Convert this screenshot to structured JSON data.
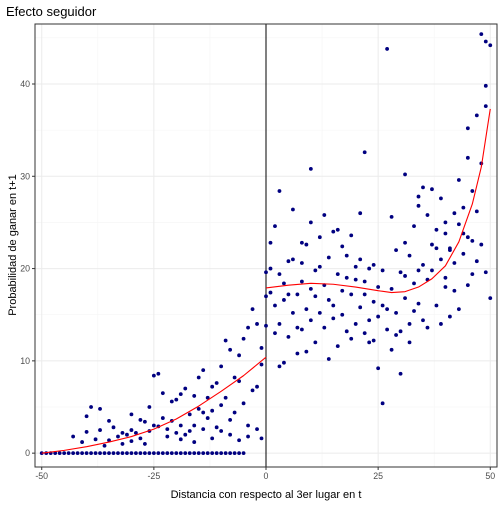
{
  "chart_data": {
    "type": "scatter",
    "title": "Efecto seguidor",
    "xlabel": "Distancia con respecto al 3er lugar en t",
    "ylabel": "Probabilidad de ganar en t+1",
    "xlim": [
      -51.5,
      51.5
    ],
    "ylim": [
      -1.5,
      46.5
    ],
    "x_ticks": [
      -50,
      -25,
      0,
      25,
      50
    ],
    "x_tick_labels": [
      "-50",
      "-25",
      "0",
      "25",
      "50"
    ],
    "y_ticks": [
      0,
      10,
      20,
      30,
      40
    ],
    "y_tick_labels": [
      "0",
      "10",
      "20",
      "30",
      "40"
    ],
    "grid": true,
    "vertical_line_x": 0,
    "colors": {
      "points": "#000080",
      "fit": "#ff0000",
      "vline": "#000000",
      "grid_major": "#ebebeb",
      "grid_minor": "#f5f5f5",
      "panel_border": "#333333"
    },
    "points": [
      [
        -50,
        0
      ],
      [
        -49,
        0
      ],
      [
        -48,
        0
      ],
      [
        -47,
        0
      ],
      [
        -46,
        0
      ],
      [
        -45,
        0
      ],
      [
        -44,
        0
      ],
      [
        -43,
        0
      ],
      [
        -42,
        0
      ],
      [
        -41,
        0
      ],
      [
        -40,
        0
      ],
      [
        -39,
        0
      ],
      [
        -38,
        0
      ],
      [
        -37,
        0
      ],
      [
        -36,
        0
      ],
      [
        -35,
        0
      ],
      [
        -34,
        0
      ],
      [
        -33,
        0
      ],
      [
        -32,
        0
      ],
      [
        -31,
        0
      ],
      [
        -30,
        0
      ],
      [
        -29,
        0
      ],
      [
        -28,
        0
      ],
      [
        -27,
        0
      ],
      [
        -26,
        0
      ],
      [
        -25,
        0
      ],
      [
        -24,
        0
      ],
      [
        -23,
        0
      ],
      [
        -22,
        0
      ],
      [
        -21,
        0
      ],
      [
        -20,
        0
      ],
      [
        -19,
        0
      ],
      [
        -18,
        0
      ],
      [
        -17,
        0
      ],
      [
        -16,
        0
      ],
      [
        -15,
        0
      ],
      [
        -14,
        0
      ],
      [
        -13,
        0
      ],
      [
        -12,
        0
      ],
      [
        -11,
        0
      ],
      [
        -10,
        0
      ],
      [
        -9,
        0
      ],
      [
        -8,
        0
      ],
      [
        -7,
        0
      ],
      [
        -6,
        0
      ],
      [
        -5,
        0
      ],
      [
        -43,
        1.8
      ],
      [
        -41,
        1.2
      ],
      [
        -40,
        2.3
      ],
      [
        -39,
        5.0
      ],
      [
        -38,
        1.5
      ],
      [
        -37,
        4.8
      ],
      [
        -36,
        0.8
      ],
      [
        -35,
        1.4
      ],
      [
        -34,
        2.8
      ],
      [
        -33,
        1.8
      ],
      [
        -32,
        1.0
      ],
      [
        -31,
        2.0
      ],
      [
        -30,
        2.5
      ],
      [
        -29,
        2.2
      ],
      [
        -28,
        1.6
      ],
      [
        -27,
        3.4
      ],
      [
        -26,
        2.4
      ],
      [
        -25,
        8.4
      ],
      [
        -24,
        8.6
      ],
      [
        -23,
        3.8
      ],
      [
        -22,
        2.6
      ],
      [
        -21,
        5.6
      ],
      [
        -20,
        2.2
      ],
      [
        -19,
        6.4
      ],
      [
        -18,
        2.0
      ],
      [
        -17,
        4.2
      ],
      [
        -16,
        3.0
      ],
      [
        -15,
        8.2
      ],
      [
        -14,
        2.6
      ],
      [
        -13,
        6.0
      ],
      [
        -12,
        4.6
      ],
      [
        -11,
        7.6
      ],
      [
        -10,
        5.2
      ],
      [
        -9,
        12.2
      ],
      [
        -8,
        3.6
      ],
      [
        -7,
        8.2
      ],
      [
        -6,
        10.6
      ],
      [
        -5,
        5.4
      ],
      [
        -4,
        13.6
      ],
      [
        -3,
        6.8
      ],
      [
        -2,
        14.0
      ],
      [
        -1,
        9.6
      ],
      [
        -40,
        4.0
      ],
      [
        -37,
        2.5
      ],
      [
        -35,
        3.5
      ],
      [
        -32,
        2.2
      ],
      [
        -30,
        4.2
      ],
      [
        -28,
        3.6
      ],
      [
        -26,
        5.0
      ],
      [
        -24,
        2.9
      ],
      [
        -23,
        6.5
      ],
      [
        -21,
        3.5
      ],
      [
        -20,
        5.8
      ],
      [
        -19,
        3.0
      ],
      [
        -18,
        7.0
      ],
      [
        -17,
        2.4
      ],
      [
        -16,
        6.2
      ],
      [
        -15,
        4.8
      ],
      [
        -14,
        9.0
      ],
      [
        -13,
        3.8
      ],
      [
        -12,
        7.2
      ],
      [
        -11,
        2.8
      ],
      [
        -10,
        9.4
      ],
      [
        -9,
        6.0
      ],
      [
        -8,
        11.2
      ],
      [
        -7,
        4.4
      ],
      [
        -6,
        7.8
      ],
      [
        -5,
        12.4
      ],
      [
        -4,
        3.0
      ],
      [
        -3,
        15.6
      ],
      [
        -2,
        7.2
      ],
      [
        -1,
        11.4
      ],
      [
        -30,
        1.3
      ],
      [
        -27,
        1.0
      ],
      [
        -25,
        3.0
      ],
      [
        -22,
        1.8
      ],
      [
        -19,
        1.5
      ],
      [
        -16,
        1.2
      ],
      [
        -14,
        4.4
      ],
      [
        -12,
        1.6
      ],
      [
        -10,
        2.4
      ],
      [
        -8,
        2.0
      ],
      [
        -6,
        1.4
      ],
      [
        -4,
        1.8
      ],
      [
        -2,
        2.6
      ],
      [
        -1,
        1.6
      ],
      [
        0,
        19.6
      ],
      [
        0,
        17.0
      ],
      [
        0,
        13.8
      ],
      [
        1,
        17.4
      ],
      [
        1,
        22.8
      ],
      [
        2,
        16.0
      ],
      [
        2,
        13.0
      ],
      [
        3,
        19.4
      ],
      [
        3,
        9.4
      ],
      [
        4,
        16.6
      ],
      [
        4,
        18.4
      ],
      [
        5,
        12.6
      ],
      [
        5,
        20.8
      ],
      [
        6,
        15.2
      ],
      [
        6,
        21.0
      ],
      [
        7,
        10.8
      ],
      [
        7,
        17.2
      ],
      [
        8,
        18.6
      ],
      [
        8,
        13.4
      ],
      [
        9,
        15.6
      ],
      [
        9,
        22.6
      ],
      [
        10,
        14.4
      ],
      [
        10,
        17.8
      ],
      [
        11,
        12.0
      ],
      [
        11,
        19.8
      ],
      [
        12,
        15.2
      ],
      [
        12,
        23.4
      ],
      [
        13,
        18.2
      ],
      [
        13,
        13.6
      ],
      [
        14,
        21.2
      ],
      [
        14,
        16.6
      ],
      [
        15,
        24.0
      ],
      [
        15,
        14.6
      ],
      [
        16,
        19.4
      ],
      [
        16,
        11.6
      ],
      [
        17,
        17.6
      ],
      [
        17,
        22.4
      ],
      [
        18,
        13.2
      ],
      [
        18,
        19.0
      ],
      [
        19,
        17.2
      ],
      [
        19,
        23.6
      ],
      [
        20,
        14.0
      ],
      [
        20,
        18.8
      ],
      [
        21,
        21.0
      ],
      [
        21,
        15.8
      ],
      [
        22,
        13.0
      ],
      [
        22,
        17.2
      ],
      [
        23,
        20.0
      ],
      [
        23,
        14.4
      ],
      [
        24,
        16.4
      ],
      [
        24,
        12.2
      ],
      [
        25,
        18.0
      ],
      [
        25,
        9.2
      ],
      [
        26,
        5.4
      ],
      [
        26,
        16.0
      ],
      [
        27,
        13.4
      ],
      [
        27,
        43.8
      ],
      [
        28,
        17.8
      ],
      [
        28,
        11.2
      ],
      [
        29,
        22.0
      ],
      [
        29,
        15.2
      ],
      [
        30,
        19.6
      ],
      [
        30,
        13.2
      ],
      [
        31,
        16.8
      ],
      [
        31,
        22.8
      ],
      [
        32,
        14.0
      ],
      [
        32,
        21.4
      ],
      [
        33,
        18.4
      ],
      [
        33,
        24.6
      ],
      [
        34,
        16.2
      ],
      [
        34,
        27.8
      ],
      [
        35,
        20.4
      ],
      [
        35,
        14.4
      ],
      [
        36,
        25.8
      ],
      [
        36,
        18.8
      ],
      [
        37,
        22.6
      ],
      [
        37,
        28.6
      ],
      [
        38,
        16.0
      ],
      [
        38,
        24.2
      ],
      [
        39,
        21.0
      ],
      [
        39,
        27.6
      ],
      [
        40,
        19.0
      ],
      [
        40,
        25.0
      ],
      [
        41,
        22.0
      ],
      [
        41,
        14.8
      ],
      [
        42,
        26.0
      ],
      [
        42,
        17.6
      ],
      [
        43,
        24.8
      ],
      [
        43,
        29.6
      ],
      [
        44,
        21.6
      ],
      [
        44,
        26.6
      ],
      [
        45,
        23.4
      ],
      [
        45,
        32.0
      ],
      [
        46,
        28.4
      ],
      [
        46,
        19.4
      ],
      [
        47,
        36.6
      ],
      [
        47,
        26.2
      ],
      [
        48,
        31.4
      ],
      [
        48,
        45.4
      ],
      [
        49,
        44.6
      ],
      [
        49,
        39.8
      ],
      [
        50,
        16.8
      ],
      [
        50,
        44.2
      ],
      [
        1,
        20.0
      ],
      [
        2,
        24.6
      ],
      [
        3,
        14.0
      ],
      [
        4,
        9.8
      ],
      [
        5,
        17.2
      ],
      [
        6,
        26.4
      ],
      [
        7,
        13.6
      ],
      [
        8,
        20.6
      ],
      [
        9,
        11.0
      ],
      [
        10,
        25.0
      ],
      [
        11,
        17.0
      ],
      [
        12,
        20.2
      ],
      [
        13,
        25.8
      ],
      [
        14,
        10.2
      ],
      [
        15,
        16.0
      ],
      [
        16,
        24.2
      ],
      [
        17,
        15.0
      ],
      [
        18,
        21.4
      ],
      [
        19,
        12.4
      ],
      [
        20,
        20.2
      ],
      [
        21,
        26.0
      ],
      [
        22,
        18.6
      ],
      [
        23,
        12.0
      ],
      [
        24,
        20.4
      ],
      [
        25,
        14.8
      ],
      [
        26,
        19.8
      ],
      [
        27,
        15.6
      ],
      [
        28,
        25.6
      ],
      [
        29,
        12.8
      ],
      [
        30,
        8.6
      ],
      [
        31,
        19.2
      ],
      [
        32,
        12.0
      ],
      [
        33,
        15.4
      ],
      [
        34,
        19.8
      ],
      [
        35,
        28.8
      ],
      [
        36,
        13.6
      ],
      [
        37,
        19.8
      ],
      [
        38,
        22.2
      ],
      [
        39,
        14.0
      ],
      [
        40,
        18.0
      ],
      [
        41,
        22.2
      ],
      [
        42,
        20.6
      ],
      [
        43,
        15.6
      ],
      [
        44,
        23.8
      ],
      [
        45,
        18.2
      ],
      [
        46,
        23.0
      ],
      [
        47,
        20.8
      ],
      [
        48,
        22.6
      ],
      [
        49,
        19.6
      ],
      [
        49,
        37.6
      ],
      [
        10,
        30.8
      ],
      [
        22,
        32.6
      ],
      [
        31,
        30.2
      ],
      [
        34,
        26.8
      ],
      [
        40,
        23.8
      ],
      [
        45,
        35.2
      ],
      [
        3,
        28.4
      ],
      [
        8,
        22.8
      ]
    ],
    "fit_curve": [
      [
        -50,
        0.0
      ],
      [
        -45,
        0.3
      ],
      [
        -40,
        0.7
      ],
      [
        -35,
        1.2
      ],
      [
        -30,
        1.8
      ],
      [
        -25,
        2.6
      ],
      [
        -20,
        3.7
      ],
      [
        -15,
        5.1
      ],
      [
        -10,
        6.7
      ],
      [
        -5,
        8.4
      ],
      [
        0,
        10.4
      ],
      null,
      [
        0,
        17.9
      ],
      [
        5,
        18.2
      ],
      [
        10,
        18.4
      ],
      [
        15,
        18.3
      ],
      [
        20,
        18.0
      ],
      [
        25,
        17.6
      ],
      [
        28,
        17.4
      ],
      [
        31,
        17.5
      ],
      [
        34,
        18.0
      ],
      [
        37,
        18.9
      ],
      [
        40,
        20.3
      ],
      [
        43,
        22.9
      ],
      [
        46,
        27.0
      ],
      [
        48,
        31.0
      ],
      [
        50,
        37.3
      ]
    ]
  }
}
